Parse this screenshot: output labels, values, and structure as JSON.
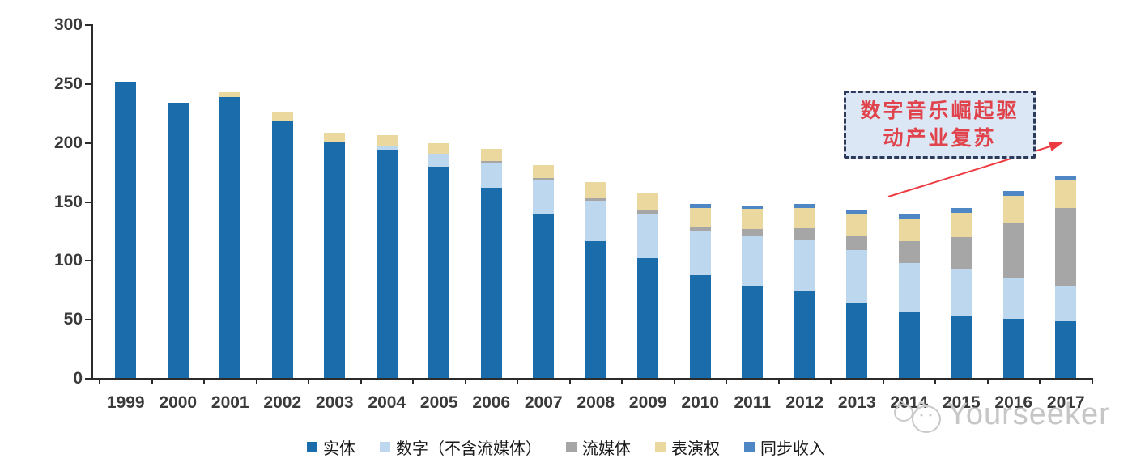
{
  "chart_data": {
    "type": "bar",
    "stacked": true,
    "title": "",
    "xlabel": "",
    "ylabel": "",
    "grid": false,
    "legend_position": "bottom",
    "ylim": [
      0,
      300
    ],
    "yticks": [
      0,
      50,
      100,
      150,
      200,
      250,
      300
    ],
    "categories": [
      "1999",
      "2000",
      "2001",
      "2002",
      "2003",
      "2004",
      "2005",
      "2006",
      "2007",
      "2008",
      "2009",
      "2010",
      "2011",
      "2012",
      "2013",
      "2014",
      "2015",
      "2016",
      "2017"
    ],
    "series": [
      {
        "name": "实体",
        "color": "#1B6CAB",
        "values": [
          252,
          234,
          239,
          219,
          201,
          194,
          180,
          162,
          140,
          117,
          102,
          88,
          78,
          74,
          64,
          57,
          53,
          51,
          49
        ]
      },
      {
        "name": "数字（不含流媒体）",
        "color": "#BDD7EE",
        "values": [
          0,
          0,
          0,
          0,
          0,
          4,
          11,
          21,
          28,
          34,
          38,
          37,
          43,
          44,
          45,
          41,
          40,
          34,
          30
        ]
      },
      {
        "name": "流媒体",
        "color": "#A6A6A6",
        "values": [
          0,
          0,
          0,
          0,
          0,
          0,
          0,
          2,
          2,
          2,
          3,
          4,
          6,
          10,
          12,
          19,
          27,
          47,
          66
        ]
      },
      {
        "name": "表演权",
        "color": "#EBD89E",
        "values": [
          0,
          0,
          4,
          7,
          8,
          9,
          9,
          10,
          11,
          14,
          14,
          16,
          17,
          17,
          19,
          19,
          21,
          23,
          24
        ]
      },
      {
        "name": "同步收入",
        "color": "#4E87C3",
        "values": [
          0,
          0,
          0,
          0,
          0,
          0,
          0,
          0,
          0,
          0,
          0,
          3,
          3,
          3,
          3,
          4,
          4,
          4,
          3
        ]
      }
    ]
  },
  "annotation": {
    "line1": "数字音乐崛起驱",
    "line2": "动产业复苏",
    "text_color": "#E0434B",
    "fill_color": "#DBE7F4",
    "border_color": "#2E3A5C",
    "arrow_color": "#EE3A41"
  },
  "watermark": {
    "brand": "Yourseeker",
    "color": "#C6C6C6"
  }
}
